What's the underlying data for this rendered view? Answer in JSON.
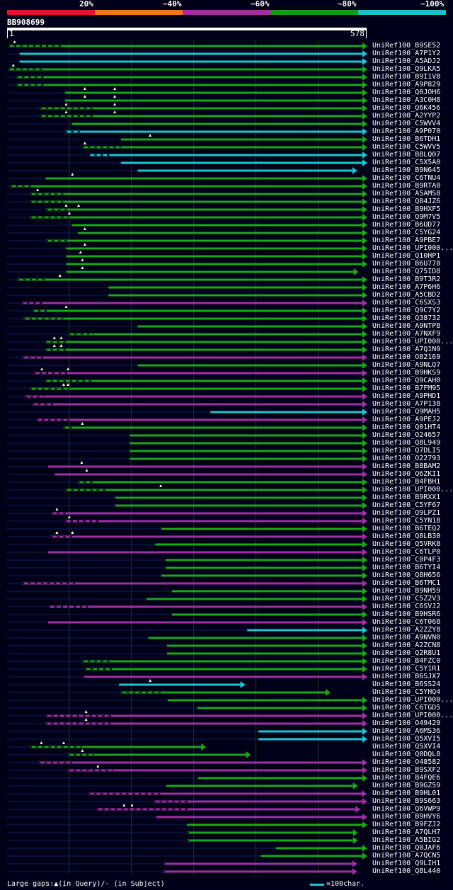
{
  "scale": {
    "labels": [
      "20%",
      "~40%",
      "~60%",
      "~80%",
      "~100%"
    ],
    "colors": [
      "#e8102a",
      "#f07818",
      "#a030a0",
      "#189818",
      "#18c0c8"
    ]
  },
  "query": {
    "name": "BB908699",
    "start": "1",
    "end": "578",
    "length": 578
  },
  "colors": {
    "cyan": "#18c8d0",
    "green": "#18a818",
    "purple": "#a030a0",
    "background": "#000018",
    "grid": "#1c3a1c",
    "ruler": "#ffffff",
    "gap_marker": "#ffffcc"
  },
  "footer": {
    "gaps_label": "Large gaps:▲(in Query)/- (in Subject)",
    "scale_label": "=100char."
  },
  "hits": [
    {
      "name": "UniRef100_B9SE52",
      "color": "green",
      "start": 2,
      "end": 588,
      "marks": [
        12
      ],
      "dots": [
        [
          1,
          90
        ]
      ]
    },
    {
      "name": "UniRef100_A7P1Y2",
      "color": "cyan",
      "start": 20,
      "end": 588,
      "marks": [],
      "dots": []
    },
    {
      "name": "UniRef100_A5ADJ2",
      "color": "cyan",
      "start": 20,
      "end": 588,
      "marks": [],
      "dots": []
    },
    {
      "name": "UniRef100_Q9LKA5",
      "color": "green",
      "start": 2,
      "end": 588,
      "marks": [
        10
      ],
      "dots": [
        [
          1,
          60
        ]
      ]
    },
    {
      "name": "UniRef100_B9I1V8",
      "color": "green",
      "start": 14,
      "end": 588,
      "marks": [],
      "dots": [
        [
          14,
          60
        ]
      ]
    },
    {
      "name": "UniRef100_A9P829",
      "color": "green",
      "start": 14,
      "end": 588,
      "marks": [],
      "dots": [
        [
          14,
          60
        ]
      ]
    },
    {
      "name": "UniRef100_Q0JOH6",
      "color": "green",
      "start": 93,
      "end": 588,
      "marks": [
        125,
        173
      ],
      "dots": []
    },
    {
      "name": "UniRef100_A3C0H8",
      "color": "green",
      "start": 93,
      "end": 588,
      "marks": [
        125,
        173
      ],
      "dots": []
    },
    {
      "name": "UniRef100_Q6K456",
      "color": "green",
      "start": 52,
      "end": 588,
      "marks": [
        95,
        173
      ],
      "dots": [
        [
          52,
          140
        ]
      ]
    },
    {
      "name": "UniRef100_A2YYP2",
      "color": "green",
      "start": 52,
      "end": 588,
      "marks": [
        95,
        173
      ],
      "dots": [
        [
          52,
          140
        ]
      ]
    },
    {
      "name": "UniRef100_C5WVV4",
      "color": "green",
      "start": 104,
      "end": 588,
      "marks": [],
      "dots": [
        [
          93,
          104
        ]
      ]
    },
    {
      "name": "UniRef100_A9P070",
      "color": "cyan",
      "start": 93,
      "end": 588,
      "marks": [],
      "dots": [
        [
          93,
          120
        ]
      ]
    },
    {
      "name": "UniRef100_B6TDH1",
      "color": "green",
      "start": 183,
      "end": 588,
      "marks": [
        230
      ],
      "dots": []
    },
    {
      "name": "UniRef100_C5WVV5",
      "color": "green",
      "start": 120,
      "end": 588,
      "marks": [
        125
      ],
      "dots": [
        [
          120,
          183
        ]
      ]
    },
    {
      "name": "UniRef100_B8LQ07",
      "color": "cyan",
      "start": 132,
      "end": 588,
      "marks": [],
      "dots": [
        [
          120,
          170
        ]
      ]
    },
    {
      "name": "UniRef100_C5X5A0",
      "color": "cyan",
      "start": 183,
      "end": 588,
      "marks": [],
      "dots": []
    },
    {
      "name": "UniRef100_B9N645",
      "color": "cyan",
      "start": 210,
      "end": 555,
      "marks": [],
      "dots": []
    },
    {
      "name": "UniRef100_C6TNU4",
      "color": "green",
      "start": 62,
      "end": 588,
      "marks": [
        105
      ],
      "dots": []
    },
    {
      "name": "UniRef100_B9RTA0",
      "color": "green",
      "start": 4,
      "end": 588,
      "marks": [],
      "dots": [
        [
          4,
          40
        ]
      ]
    },
    {
      "name": "UniRef100_A5AMS0",
      "color": "green",
      "start": 36,
      "end": 588,
      "marks": [
        49
      ],
      "dots": [
        [
          36,
          90
        ]
      ]
    },
    {
      "name": "UniRef100_Q84JZ6",
      "color": "green",
      "start": 36,
      "end": 588,
      "marks": [],
      "dots": [
        [
          36,
          90
        ]
      ]
    },
    {
      "name": "UniRef100_B9HXF5",
      "color": "green",
      "start": 62,
      "end": 588,
      "marks": [
        95,
        115
      ],
      "dots": [
        [
          62,
          100
        ]
      ]
    },
    {
      "name": "UniRef100_Q9M7V5",
      "color": "green",
      "start": 36,
      "end": 588,
      "marks": [
        100
      ],
      "dots": [
        [
          36,
          100
        ]
      ]
    },
    {
      "name": "UniRef100_B6UD77",
      "color": "green",
      "start": 104,
      "end": 588,
      "marks": [],
      "dots": []
    },
    {
      "name": "UniRef100_C5YG24",
      "color": "green",
      "start": 114,
      "end": 588,
      "marks": [
        125
      ],
      "dots": []
    },
    {
      "name": "UniRef100_A9PBE7",
      "color": "green",
      "start": 62,
      "end": 588,
      "marks": [],
      "dots": [
        [
          62,
          100
        ]
      ]
    },
    {
      "name": "UniRef100_UPI000...",
      "color": "green",
      "start": 95,
      "end": 588,
      "marks": [
        125
      ],
      "dots": []
    },
    {
      "name": "UniRef100_Q10HP1",
      "color": "green",
      "start": 95,
      "end": 588,
      "marks": [
        118
      ],
      "dots": []
    },
    {
      "name": "UniRef100_B6U770",
      "color": "green",
      "start": 95,
      "end": 588,
      "marks": [
        121
      ],
      "dots": []
    },
    {
      "name": "UniRef100_Q75ID8",
      "color": "green",
      "start": 95,
      "end": 557,
      "marks": [
        121
      ],
      "dots": []
    },
    {
      "name": "UniRef100_B9T3R2",
      "color": "green",
      "start": 16,
      "end": 588,
      "marks": [
        85
      ],
      "dots": [
        [
          16,
          60
        ]
      ]
    },
    {
      "name": "UniRef100_A7P6H6",
      "color": "green",
      "start": 163,
      "end": 588,
      "marks": [],
      "dots": []
    },
    {
      "name": "UniRef100_A5CBD2",
      "color": "green",
      "start": 163,
      "end": 588,
      "marks": [],
      "dots": []
    },
    {
      "name": "UniRef100_C6SXS3",
      "color": "purple",
      "start": 22,
      "end": 588,
      "marks": [],
      "dots": [
        [
          22,
          60
        ]
      ]
    },
    {
      "name": "UniRef100_Q9C7Y2",
      "color": "green",
      "start": 40,
      "end": 588,
      "marks": [
        95
      ],
      "dots": [
        [
          40,
          70
        ]
      ]
    },
    {
      "name": "UniRef100_Q38732",
      "color": "green",
      "start": 26,
      "end": 588,
      "marks": [],
      "dots": [
        [
          26,
          90
        ]
      ]
    },
    {
      "name": "UniRef100_A9NTP8",
      "color": "green",
      "start": 210,
      "end": 588,
      "marks": [],
      "dots": []
    },
    {
      "name": "UniRef100_A7NXF9",
      "color": "green",
      "start": 98,
      "end": 588,
      "marks": [],
      "dots": [
        [
          98,
          140
        ]
      ]
    },
    {
      "name": "UniRef100_UPI000...",
      "color": "green",
      "start": 60,
      "end": 588,
      "marks": [
        76,
        87
      ],
      "dots": [
        [
          60,
          100
        ]
      ]
    },
    {
      "name": "UniRef100_A7Q1N9",
      "color": "green",
      "start": 60,
      "end": 588,
      "marks": [
        76,
        87
      ],
      "dots": [
        [
          60,
          100
        ]
      ]
    },
    {
      "name": "UniRef100_O82169",
      "color": "purple",
      "start": 24,
      "end": 588,
      "marks": [],
      "dots": [
        [
          24,
          60
        ]
      ]
    },
    {
      "name": "UniRef100_A9NLQ7",
      "color": "green",
      "start": 210,
      "end": 588,
      "marks": [],
      "dots": []
    },
    {
      "name": "UniRef100_B9HKS9",
      "color": "purple",
      "start": 42,
      "end": 588,
      "marks": [
        56,
        98
      ],
      "dots": [
        [
          42,
          100
        ]
      ]
    },
    {
      "name": "UniRef100_Q9CAH0",
      "color": "green",
      "start": 60,
      "end": 588,
      "marks": [],
      "dots": [
        [
          60,
          140
        ]
      ]
    },
    {
      "name": "UniRef100_B7FM95",
      "color": "green",
      "start": 36,
      "end": 588,
      "marks": [
        91,
        98
      ],
      "dots": [
        [
          36,
          100
        ]
      ]
    },
    {
      "name": "UniRef100_A9PHD1",
      "color": "purple",
      "start": 28,
      "end": 588,
      "marks": [],
      "dots": [
        [
          28,
          60
        ]
      ]
    },
    {
      "name": "UniRef100_A7P138",
      "color": "purple",
      "start": 40,
      "end": 588,
      "marks": [],
      "dots": [
        [
          40,
          80
        ]
      ]
    },
    {
      "name": "UniRef100_Q9MAH5",
      "color": "cyan",
      "start": 327,
      "end": 588,
      "marks": [],
      "dots": []
    },
    {
      "name": "UniRef100_A9PEJ2",
      "color": "purple",
      "start": 46,
      "end": 588,
      "marks": [],
      "dots": [
        [
          46,
          100
        ]
      ]
    },
    {
      "name": "UniRef100_Q01HT4",
      "color": "green",
      "start": 90,
      "end": 588,
      "marks": [
        121
      ],
      "dots": [
        [
          90,
          110
        ]
      ]
    },
    {
      "name": "UniRef100_O24657",
      "color": "green",
      "start": 197,
      "end": 588,
      "marks": [],
      "dots": []
    },
    {
      "name": "UniRef100_Q8L949",
      "color": "green",
      "start": 197,
      "end": 588,
      "marks": [],
      "dots": []
    },
    {
      "name": "UniRef100_Q7DLI5",
      "color": "green",
      "start": 197,
      "end": 588,
      "marks": [],
      "dots": []
    },
    {
      "name": "UniRef100_O22793",
      "color": "green",
      "start": 197,
      "end": 588,
      "marks": [],
      "dots": []
    },
    {
      "name": "UniRef100_B8BAM2",
      "color": "purple",
      "start": 66,
      "end": 588,
      "marks": [
        120
      ],
      "dots": []
    },
    {
      "name": "UniRef100_Q6ZKI1",
      "color": "purple",
      "start": 77,
      "end": 588,
      "marks": [
        128
      ],
      "dots": []
    },
    {
      "name": "UniRef100_B4FBH1",
      "color": "green",
      "start": 113,
      "end": 588,
      "marks": [],
      "dots": [
        [
          113,
          140
        ]
      ]
    },
    {
      "name": "UniRef100_UPI000...",
      "color": "green",
      "start": 93,
      "end": 588,
      "marks": [
        247
      ],
      "dots": [
        [
          93,
          160
        ]
      ]
    },
    {
      "name": "UniRef100_B9RXX1",
      "color": "green",
      "start": 174,
      "end": 588,
      "marks": [],
      "dots": []
    },
    {
      "name": "UniRef100_C5YF67",
      "color": "green",
      "start": 174,
      "end": 588,
      "marks": [],
      "dots": []
    },
    {
      "name": "UniRef100_Q9LPZ1",
      "color": "purple",
      "start": 70,
      "end": 588,
      "marks": [
        80
      ],
      "dots": [
        [
          70,
          100
        ]
      ]
    },
    {
      "name": "UniRef100_C5YN18",
      "color": "purple",
      "start": 92,
      "end": 588,
      "marks": [
        100
      ],
      "dots": [
        [
          92,
          150
        ]
      ]
    },
    {
      "name": "UniRef100_B6TEQ2",
      "color": "green",
      "start": 248,
      "end": 588,
      "marks": [],
      "dots": []
    },
    {
      "name": "UniRef100_Q8LB30",
      "color": "purple",
      "start": 70,
      "end": 588,
      "marks": [
        80,
        105
      ],
      "dots": [
        [
          70,
          110
        ]
      ]
    },
    {
      "name": "UniRef100_Q5VRK8",
      "color": "green",
      "start": 238,
      "end": 588,
      "marks": [],
      "dots": []
    },
    {
      "name": "UniRef100_C6TLP0",
      "color": "purple",
      "start": 66,
      "end": 588,
      "marks": [],
      "dots": []
    },
    {
      "name": "UniRef100_C0P4F3",
      "color": "green",
      "start": 255,
      "end": 588,
      "marks": [],
      "dots": []
    },
    {
      "name": "UniRef100_B6TYI4",
      "color": "green",
      "start": 255,
      "end": 588,
      "marks": [],
      "dots": []
    },
    {
      "name": "UniRef100_Q8H656",
      "color": "green",
      "start": 248,
      "end": 588,
      "marks": [],
      "dots": []
    },
    {
      "name": "UniRef100_B6TMC1",
      "color": "purple",
      "start": 24,
      "end": 588,
      "marks": [],
      "dots": [
        [
          24,
          110
        ]
      ]
    },
    {
      "name": "UniRef100_B9NH59",
      "color": "green",
      "start": 265,
      "end": 588,
      "marks": [],
      "dots": []
    },
    {
      "name": "UniRef100_C5Z2V3",
      "color": "green",
      "start": 224,
      "end": 588,
      "marks": [],
      "dots": []
    },
    {
      "name": "UniRef100_C6SVJ2",
      "color": "purple",
      "start": 66,
      "end": 588,
      "marks": [],
      "dots": [
        [
          66,
          130
        ]
      ]
    },
    {
      "name": "UniRef100_B9HSR6",
      "color": "green",
      "start": 265,
      "end": 588,
      "marks": [],
      "dots": []
    },
    {
      "name": "UniRef100_C6T068",
      "color": "purple",
      "start": 66,
      "end": 588,
      "marks": [],
      "dots": []
    },
    {
      "name": "UniRef100_A2ZZY8",
      "color": "cyan",
      "start": 386,
      "end": 588,
      "marks": [],
      "dots": []
    },
    {
      "name": "UniRef100_A9NVN0",
      "color": "green",
      "start": 227,
      "end": 588,
      "marks": [],
      "dots": []
    },
    {
      "name": "UniRef100_A2ZCN8",
      "color": "green",
      "start": 257,
      "end": 588,
      "marks": [],
      "dots": []
    },
    {
      "name": "UniRef100_Q2R8U1",
      "color": "green",
      "start": 257,
      "end": 588,
      "marks": [],
      "dots": []
    },
    {
      "name": "UniRef100_B4FZC0",
      "color": "green",
      "start": 120,
      "end": 588,
      "marks": [],
      "dots": [
        [
          120,
          170
        ]
      ]
    },
    {
      "name": "UniRef100_C5Y1R1",
      "color": "green",
      "start": 124,
      "end": 588,
      "marks": [],
      "dots": [
        [
          124,
          175
        ]
      ]
    },
    {
      "name": "UniRef100_B6SJX7",
      "color": "purple",
      "start": 124,
      "end": 588,
      "marks": [],
      "dots": []
    },
    {
      "name": "UniRef100_B6SS24",
      "color": "cyan",
      "start": 180,
      "end": 375,
      "marks": [
        230
      ],
      "dots": []
    },
    {
      "name": "UniRef100_C5YHQ4",
      "color": "green",
      "start": 182,
      "end": 512,
      "marks": [],
      "dots": [
        [
          182,
          250
        ]
      ]
    },
    {
      "name": "UniRef100_UPI000...",
      "color": "green",
      "start": 258,
      "end": 588,
      "marks": [],
      "dots": []
    },
    {
      "name": "UniRef100_C6TGD5",
      "color": "green",
      "start": 306,
      "end": 588,
      "marks": [],
      "dots": []
    },
    {
      "name": "UniRef100_UPI000...",
      "color": "purple",
      "start": 61,
      "end": 572,
      "marks": [
        127
      ],
      "dots": [
        [
          61,
          170
        ]
      ]
    },
    {
      "name": "UniRef100_O49429",
      "color": "purple",
      "start": 61,
      "end": 572,
      "marks": [
        127
      ],
      "dots": [
        [
          61,
          170
        ]
      ]
    },
    {
      "name": "UniRef100_A6MS36",
      "color": "cyan",
      "start": 404,
      "end": 588,
      "marks": [],
      "dots": []
    },
    {
      "name": "UniRef100_Q5XVI5",
      "color": "cyan",
      "start": 404,
      "end": 588,
      "marks": [],
      "dots": []
    },
    {
      "name": "UniRef100_Q5XVI4",
      "color": "green",
      "start": 36,
      "end": 312,
      "marks": [
        55,
        91
      ],
      "dots": [
        [
          36,
          120
        ]
      ]
    },
    {
      "name": "UniRef100_Q0DQL8",
      "color": "green",
      "start": 97,
      "end": 384,
      "marks": [
        121
      ],
      "dots": [
        [
          97,
          140
        ]
      ]
    },
    {
      "name": "UniRef100_O48582",
      "color": "purple",
      "start": 50,
      "end": 588,
      "marks": [],
      "dots": [
        [
          50,
          110
        ]
      ]
    },
    {
      "name": "UniRef100_B9SXF2",
      "color": "purple",
      "start": 97,
      "end": 588,
      "marks": [
        146
      ],
      "dots": [
        [
          97,
          170
        ]
      ]
    },
    {
      "name": "UniRef100_B4FQE6",
      "color": "green",
      "start": 307,
      "end": 588,
      "marks": [],
      "dots": []
    },
    {
      "name": "UniRef100_B9GZ59",
      "color": "green",
      "start": 256,
      "end": 556,
      "marks": [],
      "dots": []
    },
    {
      "name": "UniRef100_B9HL01",
      "color": "purple",
      "start": 130,
      "end": 570,
      "marks": [],
      "dots": [
        [
          130,
          250
        ]
      ]
    },
    {
      "name": "UniRef100_B9S663",
      "color": "purple",
      "start": 235,
      "end": 582,
      "marks": [],
      "dots": [
        [
          235,
          290
        ]
      ]
    },
    {
      "name": "UniRef100_Q6VWP9",
      "color": "purple",
      "start": 143,
      "end": 560,
      "marks": [
        188,
        201
      ],
      "dots": [
        [
          143,
          290
        ]
      ]
    },
    {
      "name": "UniRef100_B9HVY6",
      "color": "purple",
      "start": 240,
      "end": 588,
      "marks": [],
      "dots": []
    },
    {
      "name": "UniRef100_B9FZJ2",
      "color": "green",
      "start": 289,
      "end": 588,
      "marks": [],
      "dots": []
    },
    {
      "name": "UniRef100_A7QLH7",
      "color": "green",
      "start": 289,
      "end": 556,
      "marks": [],
      "dots": [
        [
          289,
          292
        ]
      ]
    },
    {
      "name": "UniRef100_A5BIG2",
      "color": "green",
      "start": 289,
      "end": 556,
      "marks": [],
      "dots": [
        [
          289,
          292
        ]
      ]
    },
    {
      "name": "UniRef100_Q0JAF6",
      "color": "green",
      "start": 432,
      "end": 588,
      "marks": [],
      "dots": []
    },
    {
      "name": "UniRef100_A7QCN5",
      "color": "green",
      "start": 408,
      "end": 588,
      "marks": [],
      "dots": []
    },
    {
      "name": "UniRef100_Q9LIH1",
      "color": "purple",
      "start": 250,
      "end": 555,
      "marks": [],
      "dots": [
        [
          250,
          260
        ]
      ]
    },
    {
      "name": "UniRef100_Q8L440",
      "color": "purple",
      "start": 250,
      "end": 555,
      "marks": [],
      "dots": [
        [
          250,
          260
        ]
      ]
    }
  ]
}
